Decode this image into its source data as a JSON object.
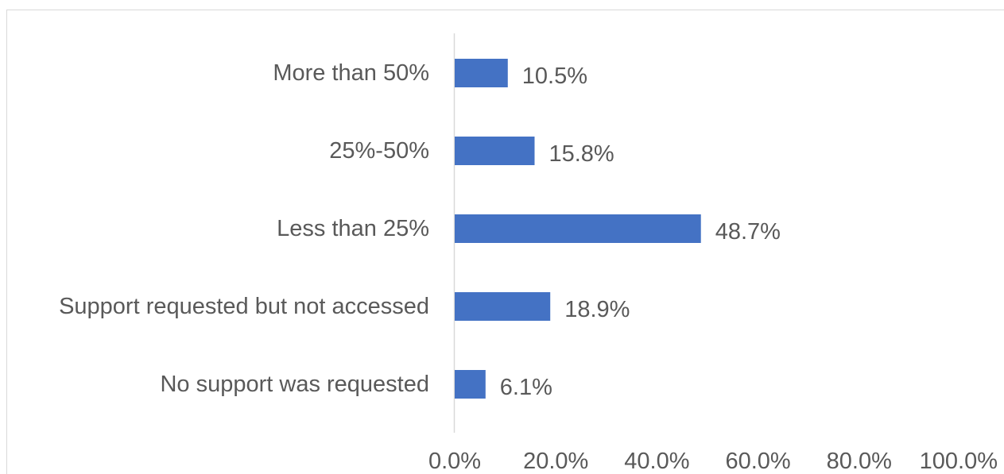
{
  "chart_data": {
    "type": "bar",
    "orientation": "horizontal",
    "categories": [
      "More than 50%",
      "25%-50%",
      "Less than 25%",
      "Support requested but not accessed",
      "No support was requested"
    ],
    "values": [
      10.5,
      15.8,
      48.7,
      18.9,
      6.1
    ],
    "data_labels": [
      "10.5%",
      "15.8%",
      "48.7%",
      "18.9%",
      "6.1%"
    ],
    "xlim": [
      0,
      100
    ],
    "x_ticks": [
      0,
      20,
      40,
      60,
      80,
      100
    ],
    "x_tick_labels": [
      "0.0%",
      "20.0%",
      "40.0%",
      "60.0%",
      "80.0%",
      "100.0%"
    ],
    "grid": false,
    "legend": "none",
    "bar_color": "#4472C4"
  }
}
